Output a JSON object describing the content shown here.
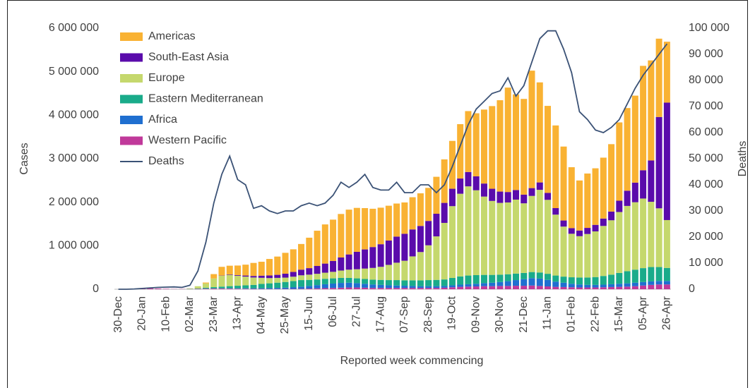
{
  "chart_data": {
    "type": "bar",
    "stacked": true,
    "x_label": "Reported week commencing",
    "y_label": "Cases",
    "y2_label": "Deaths",
    "categories": [
      "30-Dec",
      null,
      null,
      "20-Jan",
      null,
      null,
      "10-Feb",
      null,
      null,
      "02-Mar",
      null,
      null,
      "23-Mar",
      null,
      null,
      "13-Apr",
      null,
      null,
      "04-May",
      null,
      null,
      "25-May",
      null,
      null,
      "15-Jun",
      null,
      null,
      "06-Jul",
      null,
      null,
      "27-Jul",
      null,
      null,
      "17-Aug",
      null,
      null,
      "07-Sep",
      null,
      null,
      "28-Sep",
      null,
      null,
      "19-Oct",
      null,
      null,
      "09-Nov",
      null,
      null,
      "30-Nov",
      null,
      null,
      "21-Dec",
      null,
      null,
      "11-Jan",
      null,
      null,
      "01-Feb",
      null,
      null,
      "22-Feb",
      null,
      null,
      "15-Mar",
      null,
      null,
      "05-Apr",
      null,
      null,
      "26-Apr"
    ],
    "ylim": [
      0,
      6000000
    ],
    "yticks": [
      0,
      {
        "value": 1000000,
        "label": "1 000 000"
      },
      {
        "value": 2000000,
        "label": "2 000 000"
      },
      {
        "value": 3000000,
        "label": "3 000 000"
      },
      {
        "value": 4000000,
        "label": "4 000 000"
      },
      {
        "value": 5000000,
        "label": "5 000 000"
      },
      {
        "value": 6000000,
        "label": "6 000 000"
      }
    ],
    "y2lim": [
      0,
      100000
    ],
    "y2ticks": [
      0,
      {
        "value": 10000,
        "label": "10 000"
      },
      {
        "value": 20000,
        "label": "20 000"
      },
      {
        "value": 30000,
        "label": "30 000"
      },
      {
        "value": 40000,
        "label": "40 000"
      },
      {
        "value": 50000,
        "label": "50 000"
      },
      {
        "value": 60000,
        "label": "60 000"
      },
      {
        "value": 70000,
        "label": "70 000"
      },
      {
        "value": 80000,
        "label": "80 000"
      },
      {
        "value": 90000,
        "label": "90 000"
      },
      {
        "value": 100000,
        "label": "100 000"
      }
    ],
    "legend": "upper left",
    "series": [
      {
        "name": "Americas",
        "color": "#f9b233",
        "values": [
          0,
          0,
          0,
          0,
          0,
          0,
          0,
          0,
          0,
          0,
          0,
          20000,
          100000,
          200000,
          200000,
          220000,
          250000,
          300000,
          320000,
          380000,
          420000,
          480000,
          520000,
          590000,
          700000,
          810000,
          900000,
          950000,
          1000000,
          1030000,
          1010000,
          950000,
          880000,
          840000,
          800000,
          760000,
          720000,
          740000,
          750000,
          760000,
          850000,
          1000000,
          1100000,
          1250000,
          1400000,
          1450000,
          1700000,
          1900000,
          2100000,
          2400000,
          2200000,
          2200000,
          2700000,
          2300000,
          2000000,
          1900000,
          1700000,
          1400000,
          1150000,
          1250000,
          1300000,
          1400000,
          1550000,
          1800000,
          1900000,
          2000000,
          2400000,
          2300000,
          1800000,
          1400000
        ]
      },
      {
        "name": "South-East Asia",
        "color": "#5a0bab",
        "values": [
          0,
          0,
          0,
          0,
          0,
          0,
          0,
          0,
          0,
          0,
          0,
          0,
          0,
          5000,
          10000,
          15000,
          25000,
          35000,
          50000,
          60000,
          70000,
          90000,
          110000,
          130000,
          150000,
          180000,
          210000,
          250000,
          300000,
          350000,
          400000,
          440000,
          480000,
          520000,
          560000,
          600000,
          620000,
          620000,
          600000,
          560000,
          520000,
          460000,
          400000,
          350000,
          330000,
          320000,
          300000,
          280000,
          260000,
          240000,
          220000,
          200000,
          180000,
          170000,
          160000,
          150000,
          140000,
          130000,
          130000,
          140000,
          150000,
          170000,
          200000,
          260000,
          350000,
          450000,
          650000,
          950000,
          2100000,
          2700000
        ]
      },
      {
        "name": "Europe",
        "color": "#c5d86d",
        "values": [
          0,
          0,
          0,
          0,
          0,
          0,
          0,
          0,
          0,
          10000,
          50000,
          100000,
          200000,
          250000,
          260000,
          230000,
          200000,
          170000,
          140000,
          120000,
          110000,
          100000,
          100000,
          110000,
          120000,
          130000,
          140000,
          150000,
          170000,
          190000,
          210000,
          240000,
          270000,
          300000,
          350000,
          400000,
          450000,
          550000,
          650000,
          800000,
          1000000,
          1300000,
          1650000,
          1900000,
          2050000,
          1950000,
          1800000,
          1700000,
          1650000,
          1650000,
          1700000,
          1600000,
          1750000,
          1900000,
          1700000,
          1400000,
          1150000,
          1000000,
          950000,
          1000000,
          1050000,
          1150000,
          1250000,
          1400000,
          1500000,
          1550000,
          1600000,
          1500000,
          1350000,
          1100000
        ]
      },
      {
        "name": "Eastern Mediterranean",
        "color": "#1aab8a",
        "values": [
          0,
          0,
          0,
          0,
          0,
          0,
          0,
          0,
          0,
          5000,
          10000,
          20000,
          30000,
          40000,
          50000,
          60000,
          70000,
          80000,
          100000,
          110000,
          120000,
          130000,
          140000,
          150000,
          140000,
          130000,
          125000,
          120000,
          115000,
          110000,
          110000,
          110000,
          110000,
          115000,
          120000,
          125000,
          125000,
          130000,
          135000,
          140000,
          145000,
          150000,
          170000,
          190000,
          200000,
          200000,
          190000,
          180000,
          170000,
          160000,
          150000,
          145000,
          140000,
          140000,
          140000,
          140000,
          140000,
          150000,
          160000,
          170000,
          180000,
          200000,
          220000,
          250000,
          280000,
          300000,
          320000,
          330000,
          320000,
          300000
        ]
      },
      {
        "name": "Africa",
        "color": "#1f6fd0",
        "values": [
          0,
          0,
          0,
          0,
          0,
          0,
          0,
          0,
          0,
          0,
          1000,
          2000,
          3000,
          5000,
          7000,
          8000,
          10000,
          12000,
          15000,
          20000,
          25000,
          30000,
          40000,
          50000,
          60000,
          75000,
          90000,
          100000,
          110000,
          110000,
          100000,
          90000,
          80000,
          70000,
          60000,
          55000,
          50000,
          45000,
          40000,
          40000,
          40000,
          40000,
          45000,
          50000,
          55000,
          60000,
          70000,
          80000,
          90000,
          110000,
          130000,
          150000,
          170000,
          170000,
          150000,
          120000,
          100000,
          80000,
          70000,
          60000,
          60000,
          60000,
          65000,
          70000,
          75000,
          80000,
          80000,
          80000,
          80000,
          80000
        ]
      },
      {
        "name": "Western Pacific",
        "color": "#c0399a",
        "values": [
          0,
          0,
          1000,
          10000,
          20000,
          15000,
          10000,
          5000,
          5000,
          5000,
          8000,
          12000,
          15000,
          15000,
          14000,
          12000,
          10000,
          8000,
          7000,
          6000,
          6000,
          7000,
          8000,
          10000,
          15000,
          20000,
          25000,
          30000,
          35000,
          40000,
          40000,
          35000,
          30000,
          30000,
          30000,
          30000,
          30000,
          30000,
          30000,
          30000,
          30000,
          35000,
          45000,
          55000,
          60000,
          65000,
          70000,
          70000,
          75000,
          75000,
          80000,
          80000,
          85000,
          75000,
          65000,
          55000,
          50000,
          45000,
          40000,
          40000,
          40000,
          45000,
          50000,
          55000,
          60000,
          70000,
          85000,
          100000,
          110000,
          110000
        ]
      },
      {
        "name": "Deaths",
        "color": "#3b5276",
        "type": "line",
        "axis": "y2",
        "values": [
          0,
          0,
          100,
          300,
          500,
          700,
          800,
          900,
          700,
          1500,
          7000,
          18000,
          33000,
          44000,
          51000,
          42000,
          40000,
          31000,
          32000,
          30000,
          29000,
          30000,
          30000,
          32000,
          33000,
          32000,
          33000,
          36000,
          41000,
          39000,
          41000,
          44000,
          39000,
          38000,
          38000,
          41000,
          37000,
          37000,
          40000,
          40000,
          37000,
          40000,
          47000,
          55000,
          63000,
          69000,
          72000,
          75000,
          76000,
          81000,
          74000,
          78000,
          87000,
          96000,
          99000,
          99000,
          92000,
          83000,
          68000,
          65000,
          61000,
          60000,
          62000,
          65000,
          71000,
          77000,
          82000,
          86000,
          90000,
          94000
        ]
      }
    ]
  }
}
